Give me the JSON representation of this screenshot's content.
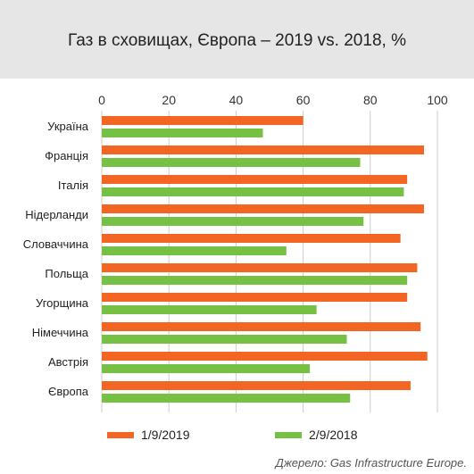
{
  "title": "Газ в сховищах, Європа – 2019 vs. 2018, %",
  "source": "Джерело: Gas Infrastructure Europe.",
  "colors": {
    "series_2019": "#f26522",
    "series_2018": "#76c043",
    "grid": "#cccccc",
    "title_bg": "#e6e6e6"
  },
  "chart_data": {
    "type": "bar",
    "orientation": "horizontal",
    "title": "Газ в сховищах, Європа – 2019 vs. 2018, %",
    "xlabel": "",
    "ylabel": "",
    "xlim": [
      0,
      100
    ],
    "ticks": [
      0,
      20,
      40,
      60,
      80,
      100
    ],
    "grid": true,
    "legend": "bottom",
    "categories": [
      "Україна",
      "Франція",
      "Італія",
      "Нідерланди",
      "Словаччина",
      "Польща",
      "Угорщина",
      "Німеччина",
      "Австрія",
      "Європа"
    ],
    "series": [
      {
        "name": "1/9/2019",
        "color": "#f26522",
        "values": [
          60,
          96,
          91,
          96,
          89,
          94,
          91,
          95,
          97,
          92
        ]
      },
      {
        "name": "2/9/2018",
        "color": "#76c043",
        "values": [
          48,
          77,
          90,
          78,
          55,
          91,
          64,
          73,
          62,
          74
        ]
      }
    ]
  }
}
